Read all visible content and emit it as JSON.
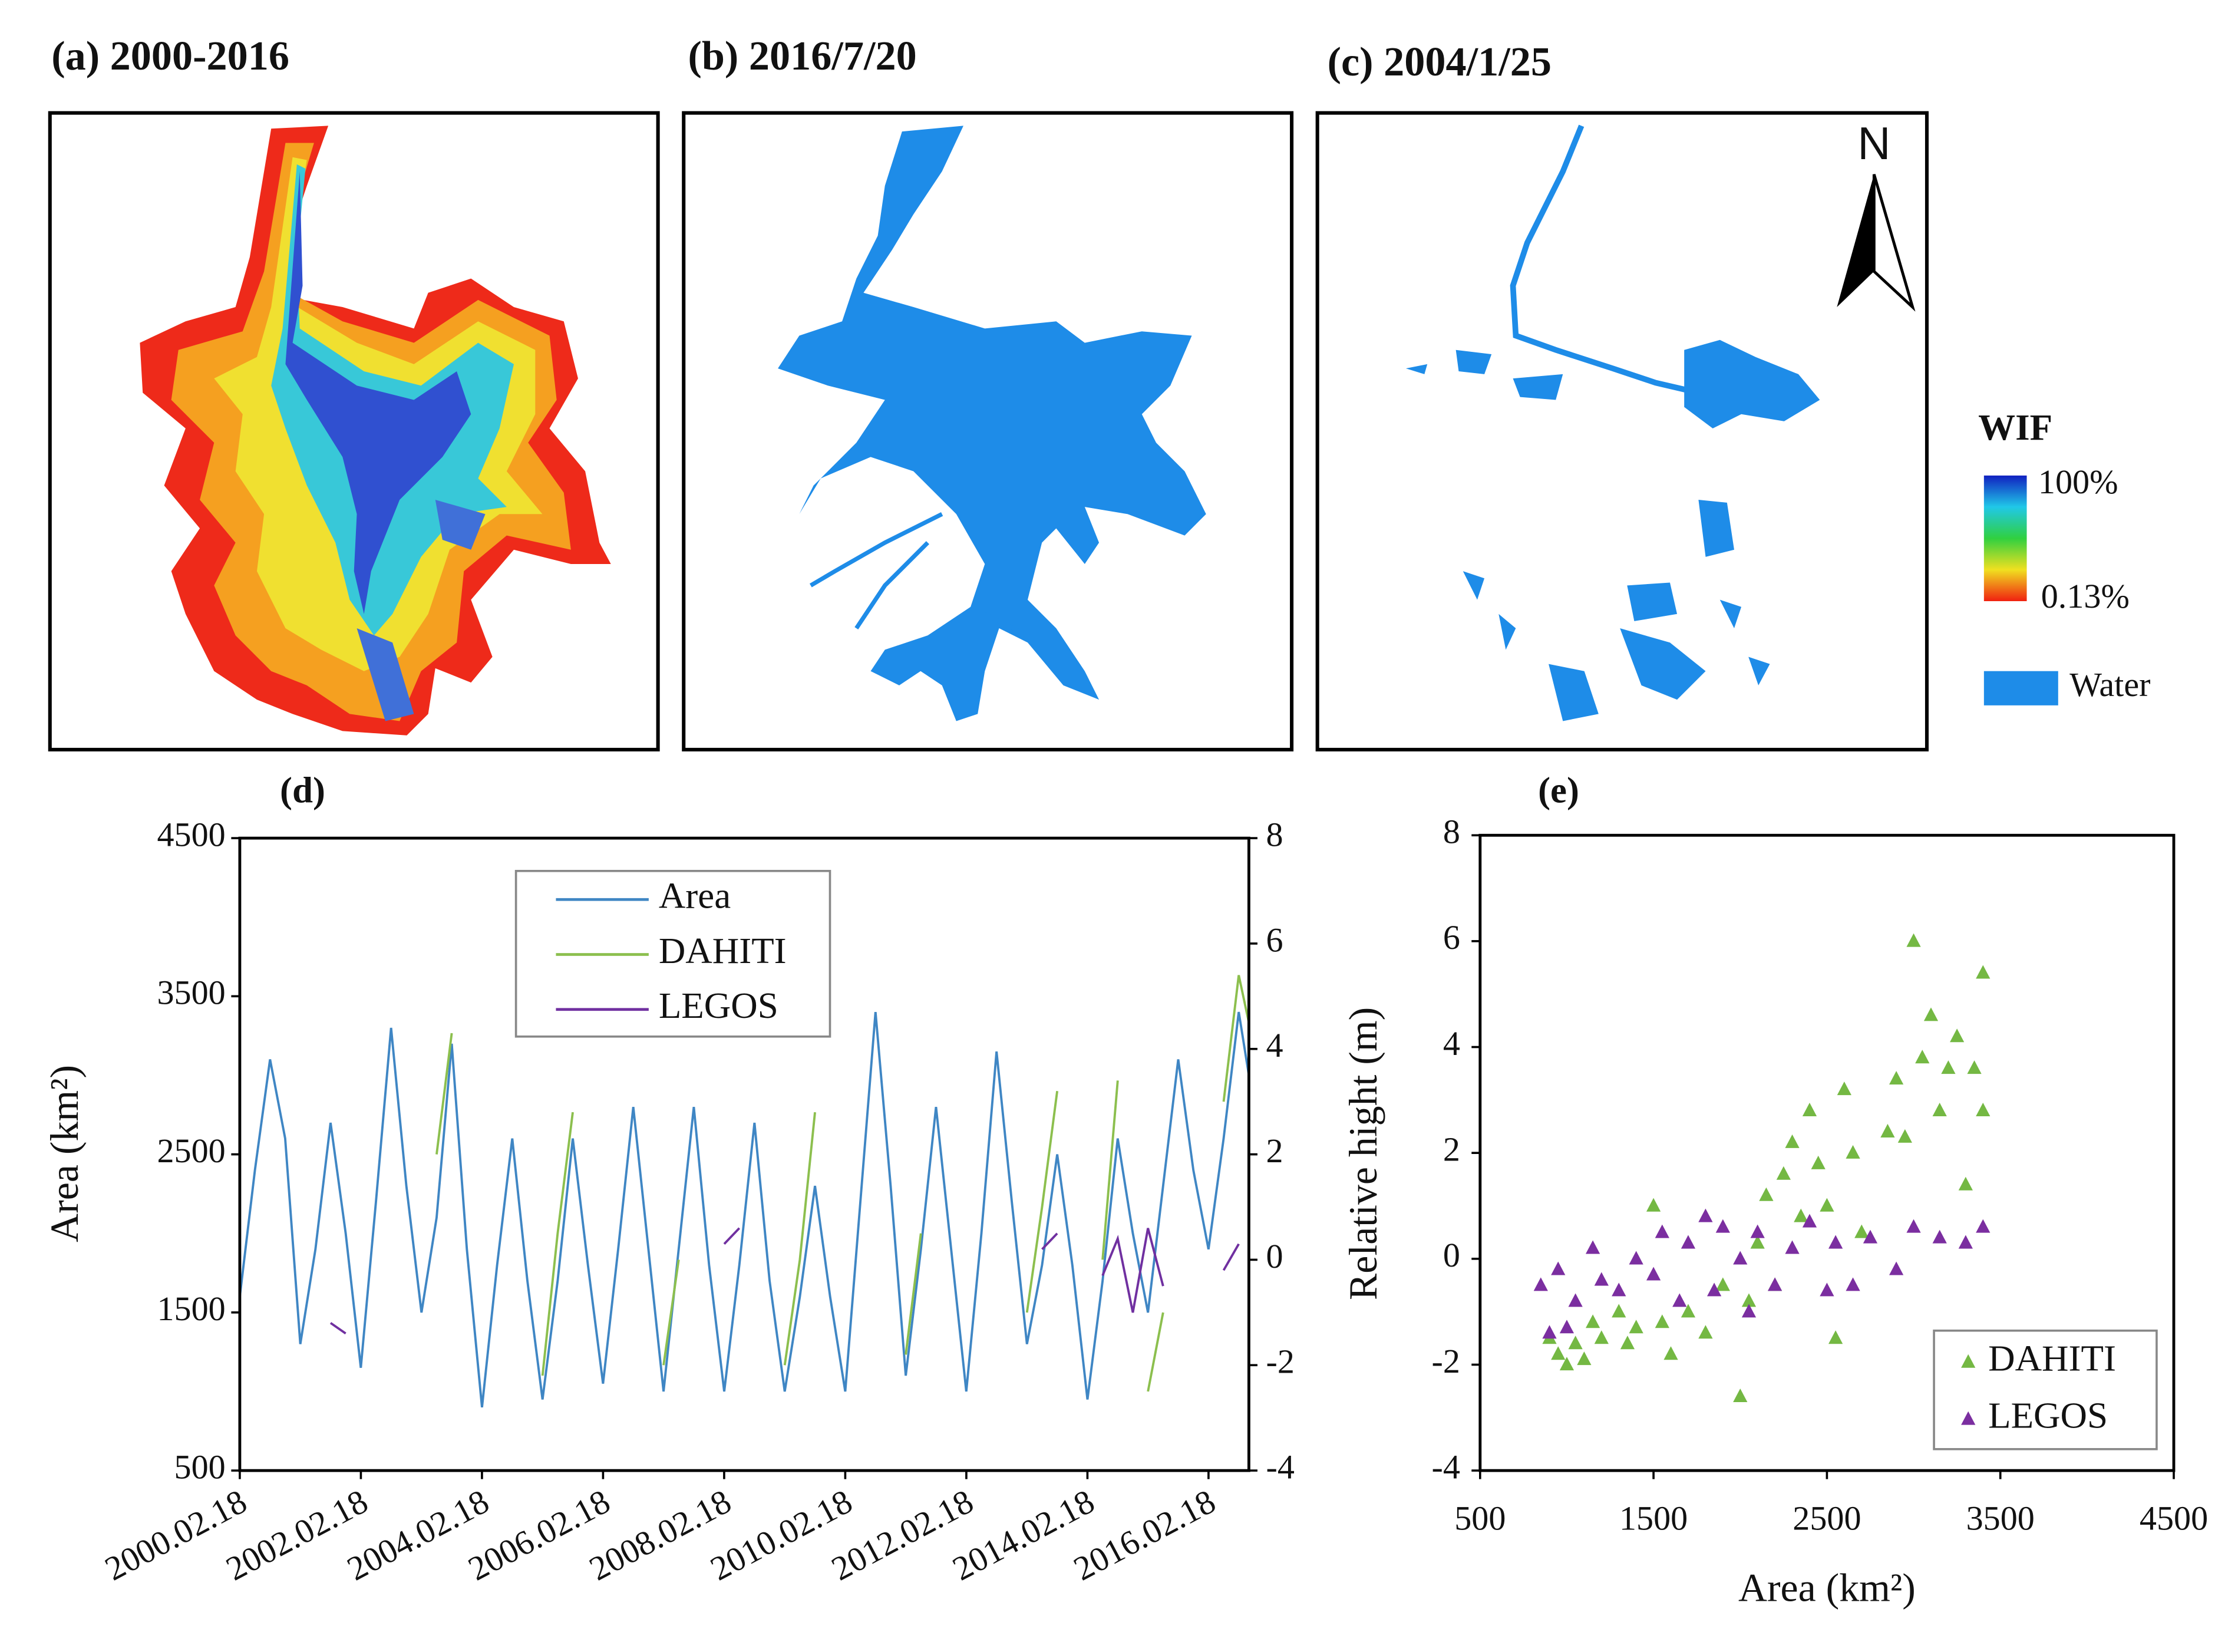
{
  "maps": {
    "panels": [
      "(a) 2000-2016",
      "(b) 2016/7/20",
      "(c) 2004/1/25"
    ],
    "north": "N",
    "colorbar_title": "WIF",
    "colorbar_max": "100%",
    "colorbar_min": "0.13%",
    "water_label": "Water"
  },
  "chart_data": [
    {
      "type": "line",
      "title": "(d)",
      "y_label": "Area (km²)",
      "xlim": [
        "2000.02.18",
        "2016.10.18"
      ],
      "xticks": [
        "2000.02.18",
        "2002.02.18",
        "2004.02.18",
        "2006.02.18",
        "2008.02.18",
        "2010.02.18",
        "2012.02.18",
        "2014.02.18",
        "2016.02.18"
      ],
      "ylim": [
        500,
        4500
      ],
      "yticks": [
        500,
        1500,
        2500,
        3500,
        4500
      ],
      "y2lim": [
        -4,
        8
      ],
      "y2ticks": [
        -4,
        -2,
        0,
        2,
        4,
        6,
        8
      ],
      "legend": "upper center",
      "series": [
        {
          "name": "Area",
          "color": "#3f86c4",
          "x": [
            "2000.02.18",
            "2000.05.18",
            "2000.08.18",
            "2000.11.18",
            "2001.02.18",
            "2001.05.18",
            "2001.08.18",
            "2001.11.18",
            "2002.02.18",
            "2002.05.18",
            "2002.08.18",
            "2002.11.18",
            "2003.02.18",
            "2003.05.18",
            "2003.08.18",
            "2003.11.18",
            "2004.02.18",
            "2004.05.18",
            "2004.08.18",
            "2004.11.18",
            "2005.02.18",
            "2005.05.18",
            "2005.08.18",
            "2005.11.18",
            "2006.02.18",
            "2006.05.18",
            "2006.08.18",
            "2006.11.18",
            "2007.02.18",
            "2007.05.18",
            "2007.08.18",
            "2007.11.18",
            "2008.02.18",
            "2008.05.18",
            "2008.08.18",
            "2008.11.18",
            "2009.02.18",
            "2009.05.18",
            "2009.08.18",
            "2009.11.18",
            "2010.02.18",
            "2010.05.18",
            "2010.08.18",
            "2010.11.18",
            "2011.02.18",
            "2011.05.18",
            "2011.08.18",
            "2011.11.18",
            "2012.02.18",
            "2012.05.18",
            "2012.08.18",
            "2012.11.18",
            "2013.02.18",
            "2013.05.18",
            "2013.08.18",
            "2013.11.18",
            "2014.02.18",
            "2014.05.18",
            "2014.08.18",
            "2014.11.18",
            "2015.02.18",
            "2015.05.18",
            "2015.08.18",
            "2015.11.18",
            "2016.02.18",
            "2016.05.18",
            "2016.08.18",
            "2016.10.18"
          ],
          "values": [
            1600,
            2400,
            3100,
            2600,
            1300,
            1900,
            2700,
            2000,
            1150,
            2200,
            3300,
            2300,
            1500,
            2100,
            3200,
            1900,
            900,
            1800,
            2600,
            1700,
            950,
            1700,
            2600,
            1800,
            1050,
            1900,
            2800,
            1900,
            1000,
            1900,
            2800,
            1800,
            1000,
            1800,
            2700,
            1700,
            1000,
            1600,
            2300,
            1600,
            1000,
            2200,
            3400,
            2300,
            1100,
            1900,
            2800,
            1900,
            1000,
            2000,
            3150,
            2200,
            1300,
            1800,
            2500,
            1800,
            950,
            1700,
            2600,
            2000,
            1500,
            2300,
            3100,
            2400,
            1900,
            2600,
            3400,
            3000
          ]
        },
        {
          "name": "DAHITI",
          "color": "#8cbf4e",
          "axis": "y2",
          "x": [
            "2003.05.18",
            "2003.08.18",
            "2003.11.18",
            "2005.02.18",
            "2005.05.18",
            "2005.08.18",
            "2005.11.18",
            "2007.02.18",
            "2007.05.18",
            "2007.08.18",
            "2009.02.18",
            "2009.05.18",
            "2009.08.18",
            "2009.11.18",
            "2011.02.18",
            "2011.05.18",
            "2011.08.18",
            "2013.02.18",
            "2013.05.18",
            "2013.08.18",
            "2013.11.18",
            "2014.05.18",
            "2014.08.18",
            "2014.11.18",
            "2015.02.18",
            "2015.05.18",
            "2015.08.18",
            "2016.05.18",
            "2016.08.18",
            "2016.10.18"
          ],
          "values": [
            2.0,
            4.3,
            null,
            -2.2,
            0.5,
            2.8,
            null,
            -2.0,
            0.0,
            null,
            -2.0,
            0.0,
            2.8,
            null,
            -1.8,
            0.5,
            null,
            -1.0,
            1.0,
            3.2,
            null,
            0.0,
            3.4,
            null,
            -2.5,
            -1.0,
            null,
            3.0,
            5.4,
            4.5
          ]
        },
        {
          "name": "LEGOS",
          "color": "#7030a0",
          "axis": "y2",
          "x": [
            "2001.08.18",
            "2001.11.18",
            "2002.02.18",
            "2008.02.18",
            "2008.05.18",
            "2008.08.18",
            "2013.05.18",
            "2013.08.18",
            "2013.11.18",
            "2014.05.18",
            "2014.08.18",
            "2014.11.18",
            "2015.02.18",
            "2015.05.18",
            "2015.08.18",
            "2016.05.18",
            "2016.08.18"
          ],
          "values": [
            -1.2,
            -1.4,
            null,
            0.3,
            0.6,
            null,
            0.2,
            0.5,
            null,
            -0.3,
            0.4,
            -1.0,
            0.6,
            -0.5,
            null,
            -0.2,
            0.3
          ]
        }
      ]
    },
    {
      "type": "scatter",
      "title": "(e)",
      "x_label": "Area (km²)",
      "y_label": "Relative hight (m)",
      "xlim": [
        500,
        4500
      ],
      "xticks": [
        500,
        1500,
        2500,
        3500,
        4500
      ],
      "ylim": [
        -4,
        8
      ],
      "yticks": [
        -4,
        -2,
        0,
        2,
        4,
        6,
        8
      ],
      "legend": "lower right",
      "series": [
        {
          "name": "DAHITI",
          "color": "#74b843",
          "x": [
            900,
            950,
            1000,
            1050,
            1100,
            1150,
            1200,
            1300,
            1350,
            1400,
            1500,
            1550,
            1600,
            1700,
            1800,
            1900,
            2000,
            2050,
            2100,
            2150,
            2200,
            2250,
            2300,
            2350,
            2400,
            2450,
            2500,
            2550,
            2600,
            2650,
            2700,
            2850,
            2900,
            2950,
            3000,
            3050,
            3100,
            3150,
            3200,
            3250,
            3300,
            3350,
            3400,
            3400
          ],
          "values": [
            -1.5,
            -1.8,
            -2.0,
            -1.6,
            -1.9,
            -1.2,
            -1.5,
            -1.0,
            -1.6,
            -1.3,
            1.0,
            -1.2,
            -1.8,
            -1.0,
            -1.4,
            -0.5,
            -2.6,
            -0.8,
            0.3,
            1.2,
            -0.5,
            1.6,
            2.2,
            0.8,
            2.8,
            1.8,
            1.0,
            -1.5,
            3.2,
            2.0,
            0.5,
            2.4,
            3.4,
            2.3,
            6.0,
            3.8,
            4.6,
            2.8,
            3.6,
            4.2,
            1.4,
            3.6,
            5.4,
            2.8
          ]
        },
        {
          "name": "LEGOS",
          "color": "#7b2ea0",
          "x": [
            850,
            900,
            950,
            1000,
            1050,
            1150,
            1200,
            1300,
            1400,
            1500,
            1550,
            1650,
            1700,
            1800,
            1850,
            1900,
            2000,
            2050,
            2100,
            2200,
            2300,
            2400,
            2500,
            2550,
            2650,
            2750,
            2900,
            3000,
            3150,
            3300,
            3400
          ],
          "values": [
            -0.5,
            -1.4,
            -0.2,
            -1.3,
            -0.8,
            0.2,
            -0.4,
            -0.6,
            0.0,
            -0.3,
            0.5,
            -0.8,
            0.3,
            0.8,
            -0.6,
            0.6,
            0.0,
            -1.0,
            0.5,
            -0.5,
            0.2,
            0.7,
            -0.6,
            0.3,
            -0.5,
            0.4,
            -0.2,
            0.6,
            0.4,
            0.3,
            0.6
          ]
        }
      ]
    }
  ]
}
